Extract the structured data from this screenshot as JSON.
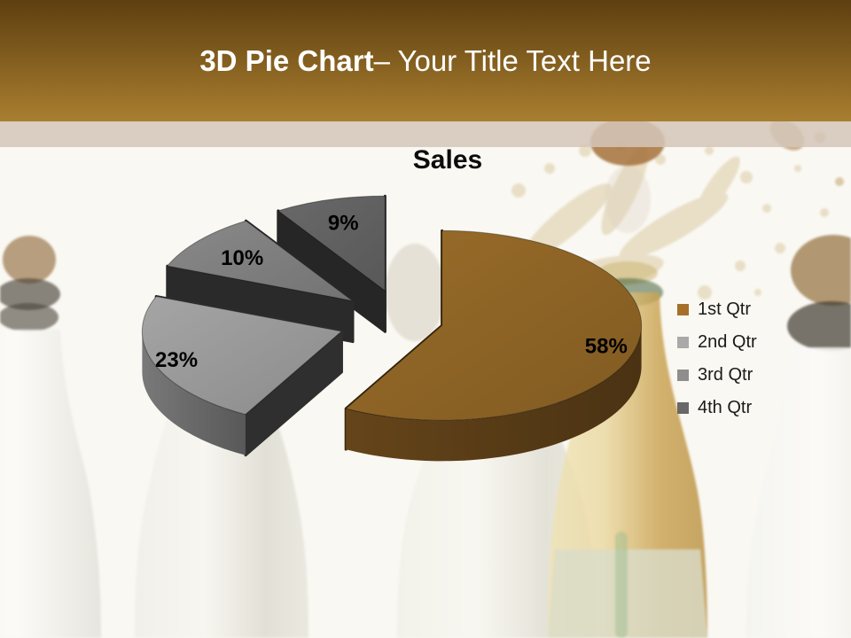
{
  "header": {
    "title_bold": "3D Pie Chart",
    "title_rest": "– Your Title Text Here"
  },
  "chart_data": {
    "type": "pie",
    "style": "3d-exploded",
    "title": "Sales",
    "labels": [
      "1st Qtr",
      "2nd Qtr",
      "3rd Qtr",
      "4th Qtr"
    ],
    "values": [
      58,
      23,
      10,
      9
    ],
    "unit": "percent",
    "percent_labels": [
      "58%",
      "23%",
      "10%",
      "9%"
    ],
    "slice_colors": [
      "#8F6526",
      "#9A9A9A",
      "#808080",
      "#626262"
    ],
    "slice_side_colors": [
      "#5C3F18",
      "#6E6E6E",
      "#5E5E5E",
      "#4A4A4A"
    ],
    "slice_edge_colors": [
      "#3A280E",
      "#2F2F2F",
      "#2A2A2A",
      "#262626"
    ],
    "legend_colors": [
      "#A5702A",
      "#A9A9A9",
      "#8E8E8E",
      "#686868"
    ],
    "legend_position": "right"
  },
  "theme": {
    "header_gradient_top": "#5E3F10",
    "header_gradient_bottom": "#A87E31",
    "accent_strip": "#D4C6B8",
    "background": "#FAF8F2",
    "title_text": "#FFFFFF",
    "label_text": "#000000"
  }
}
